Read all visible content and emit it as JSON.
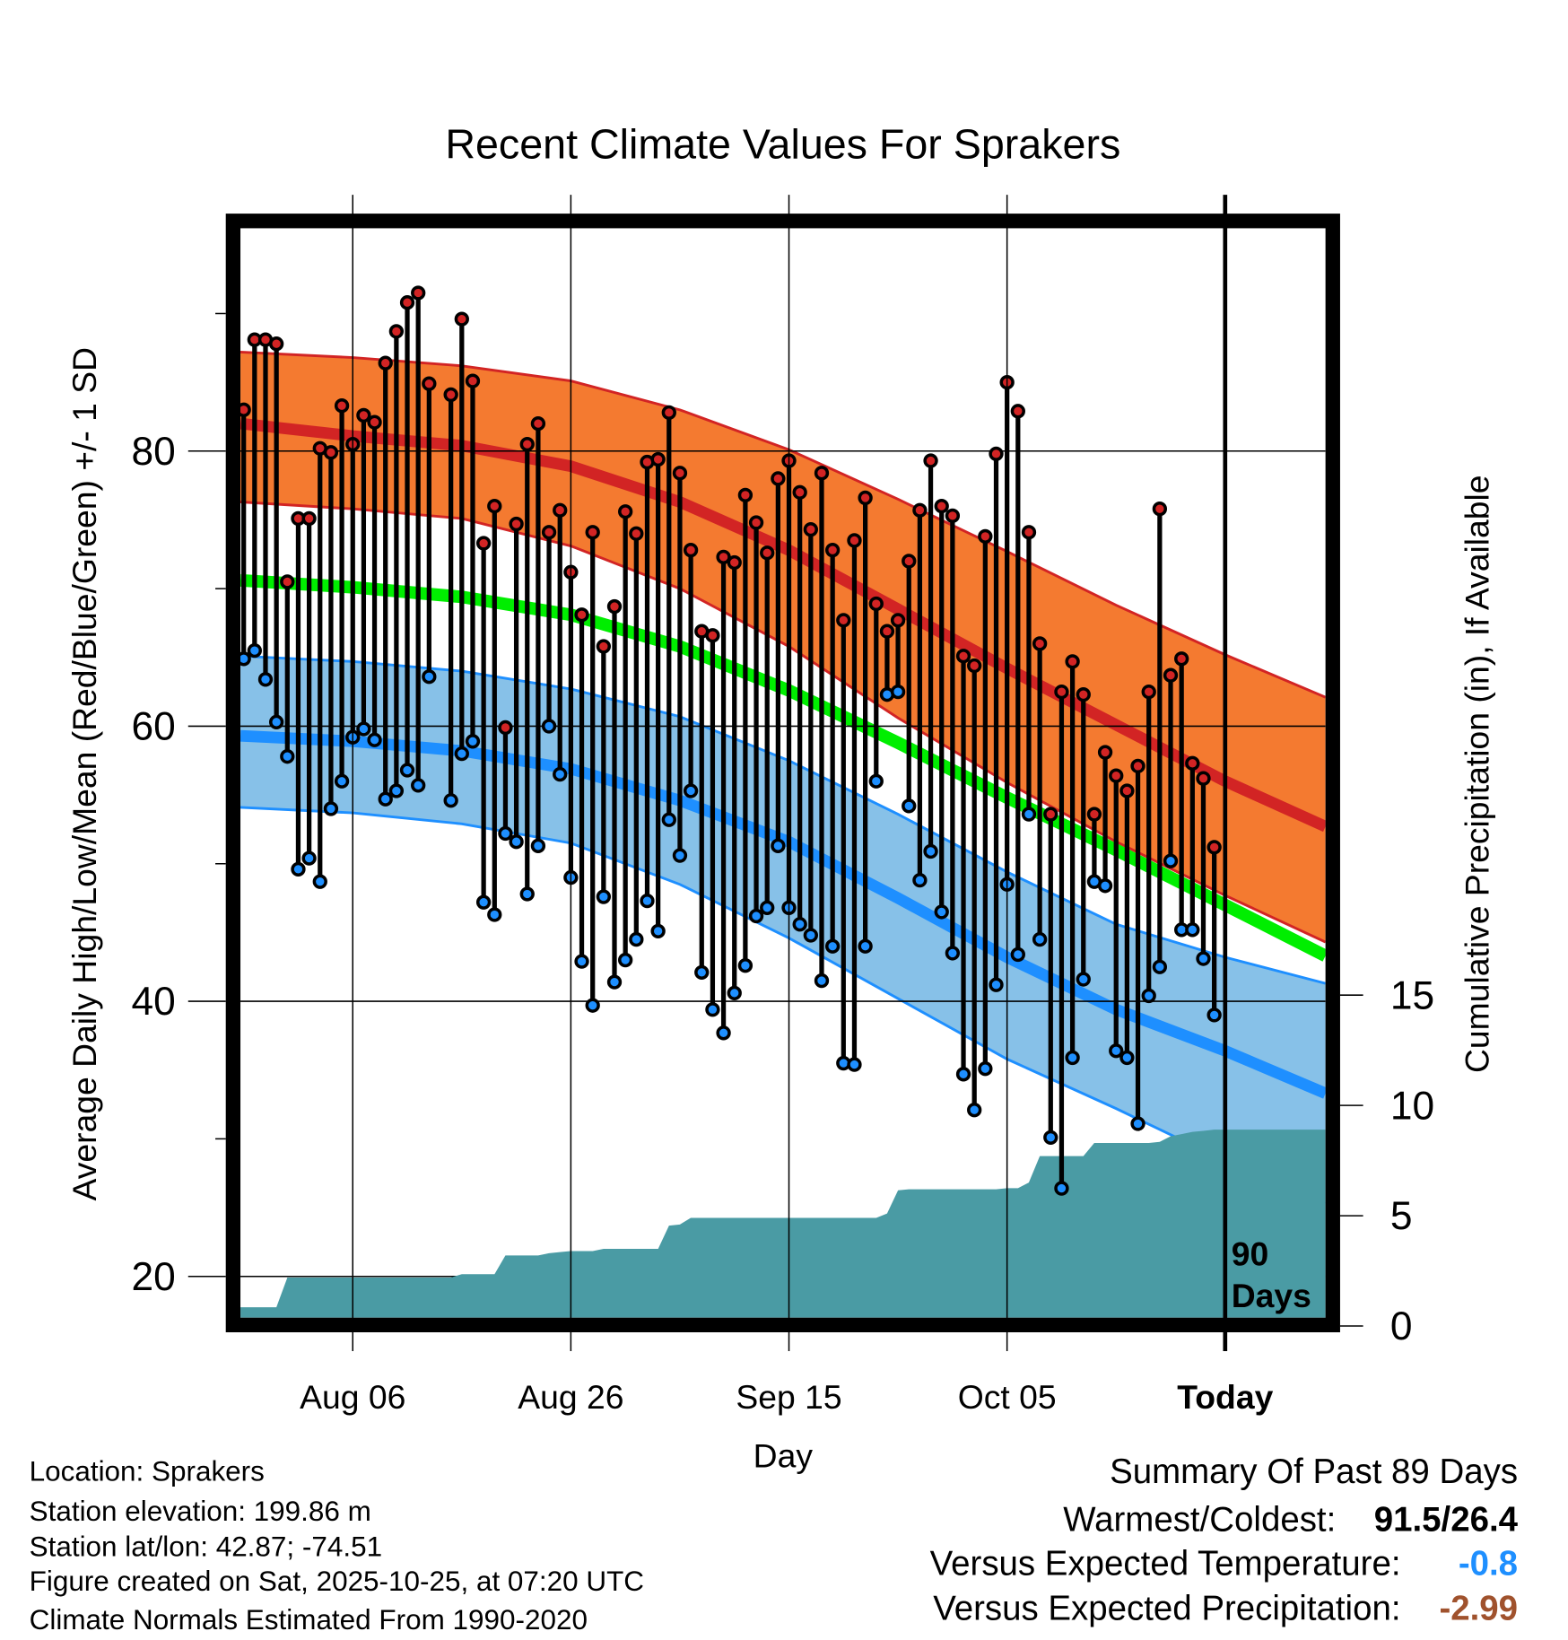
{
  "chart_data": {
    "type": "line",
    "title": "Recent Climate Values For Sprakers",
    "xlabel": "Day",
    "ylabel": "Average Daily High/Low/Mean (Red/Blue/Green) +/- 1 SD",
    "y2label": "Cumulative Precipitation (in), If Available",
    "x_units": "days relative to today",
    "xlim": [
      -90.3,
      9.2
    ],
    "ylim": [
      17,
      96.2
    ],
    "y2lim": [
      0,
      49.4
    ],
    "grid": true,
    "x_ticks": [
      {
        "value": -80,
        "label": "Aug 06"
      },
      {
        "value": -60,
        "label": "Aug 26"
      },
      {
        "value": -40,
        "label": "Sep 15"
      },
      {
        "value": -20,
        "label": "Oct 05"
      },
      {
        "value": 0,
        "label": "Today"
      }
    ],
    "y_ticks": [
      {
        "value": 20,
        "label": "20"
      },
      {
        "value": 40,
        "label": "40"
      },
      {
        "value": 60,
        "label": "60"
      },
      {
        "value": 80,
        "label": "80"
      }
    ],
    "y_minor_ticks": [
      30,
      50,
      70,
      90
    ],
    "y2_ticks": [
      {
        "value": 0,
        "label": "0"
      },
      {
        "value": 5,
        "label": "5"
      },
      {
        "value": 10,
        "label": "10"
      },
      {
        "value": 15,
        "label": "15"
      }
    ],
    "today_annotation": [
      "90",
      "Days"
    ],
    "daily_start_offset": -90,
    "daily_high": [
      83.0,
      88.1,
      88.1,
      87.8,
      70.5,
      75.1,
      75.1,
      80.2,
      79.9,
      83.3,
      80.5,
      82.6,
      82.1,
      86.4,
      88.7,
      90.8,
      91.5,
      84.9,
      null,
      84.1,
      89.6,
      85.1,
      73.3,
      76.0,
      59.9,
      74.7,
      80.5,
      82.0,
      74.1,
      75.7,
      71.2,
      68.1,
      74.1,
      65.8,
      68.7,
      75.6,
      74.0,
      79.2,
      79.4,
      82.8,
      78.4,
      72.8,
      66.9,
      66.6,
      72.3,
      71.9,
      76.8,
      74.8,
      72.6,
      78.0,
      79.3,
      77.0,
      74.3,
      78.4,
      72.8,
      67.7,
      73.5,
      76.6,
      68.9,
      66.9,
      67.7,
      72.0,
      75.7,
      79.3,
      76.0,
      75.3,
      65.1,
      64.4,
      73.8,
      79.8,
      85.0,
      82.9,
      74.1,
      66.0,
      53.6,
      62.5,
      64.7,
      62.3,
      53.6,
      58.1,
      56.4,
      55.3,
      57.1,
      62.5,
      75.8,
      63.7,
      64.9,
      57.3,
      56.2,
      51.2
    ],
    "daily_low": [
      64.9,
      65.5,
      63.4,
      60.3,
      57.8,
      49.6,
      50.4,
      48.7,
      54.0,
      56.0,
      59.2,
      59.8,
      59.0,
      54.7,
      55.3,
      56.8,
      55.7,
      63.6,
      null,
      54.6,
      58.0,
      58.9,
      47.2,
      46.3,
      52.2,
      51.6,
      47.8,
      51.3,
      60.0,
      56.5,
      49.0,
      42.9,
      39.7,
      47.6,
      41.4,
      43.0,
      44.5,
      47.3,
      45.1,
      53.2,
      50.6,
      55.3,
      42.1,
      39.4,
      37.7,
      40.6,
      42.6,
      46.2,
      46.8,
      51.3,
      46.8,
      45.6,
      44.8,
      41.5,
      44.0,
      35.5,
      35.4,
      44.0,
      56.0,
      62.3,
      62.5,
      54.2,
      48.8,
      50.9,
      46.5,
      43.5,
      34.7,
      32.1,
      35.1,
      41.2,
      48.5,
      43.4,
      53.6,
      44.5,
      30.1,
      26.4,
      35.9,
      41.6,
      48.7,
      48.4,
      36.4,
      35.9,
      31.1,
      40.4,
      42.5,
      50.2,
      45.2,
      45.2,
      43.1,
      39.0
    ],
    "cumulative_precip": [
      0.85,
      0.85,
      0.85,
      0.85,
      2.2,
      2.2,
      2.2,
      2.2,
      2.2,
      2.2,
      2.2,
      2.2,
      2.2,
      2.2,
      2.2,
      2.2,
      2.2,
      2.2,
      2.2,
      2.2,
      2.35,
      2.35,
      2.35,
      2.35,
      3.2,
      3.2,
      3.2,
      3.2,
      3.3,
      3.35,
      3.4,
      3.4,
      3.4,
      3.5,
      3.5,
      3.5,
      3.5,
      3.5,
      3.5,
      4.55,
      4.6,
      4.9,
      4.9,
      4.9,
      4.9,
      4.9,
      4.9,
      4.9,
      4.9,
      4.9,
      4.9,
      4.9,
      4.9,
      4.9,
      4.9,
      4.9,
      4.9,
      4.9,
      4.9,
      5.1,
      6.15,
      6.2,
      6.2,
      6.2,
      6.2,
      6.2,
      6.2,
      6.2,
      6.2,
      6.2,
      6.25,
      6.25,
      6.5,
      7.7,
      7.7,
      7.7,
      7.7,
      7.7,
      8.3,
      8.3,
      8.3,
      8.3,
      8.3,
      8.3,
      8.35,
      8.6,
      8.7,
      8.8,
      8.85,
      8.9
    ],
    "normals_x": [
      -90.3,
      -80,
      -70,
      -60,
      -50,
      -40,
      -30,
      -20,
      -10,
      0,
      9.2
    ],
    "normal_high_mean": [
      82.0,
      81.1,
      80.4,
      78.9,
      76.3,
      72.8,
      68.5,
      64.2,
      60.1,
      56.0,
      52.7
    ],
    "normal_high_upper": [
      87.2,
      86.8,
      86.2,
      85.1,
      83.0,
      80.1,
      76.5,
      72.7,
      68.8,
      65.2,
      62.1
    ],
    "normal_high_lower": [
      76.3,
      75.8,
      75.1,
      73.1,
      70.0,
      65.8,
      60.6,
      55.9,
      51.6,
      47.7,
      44.3
    ],
    "normal_mean": [
      70.6,
      70.1,
      69.4,
      68.1,
      65.8,
      62.6,
      58.8,
      54.8,
      51.0,
      47.0,
      43.3
    ],
    "normal_low_upper": [
      65.1,
      64.7,
      64.0,
      62.7,
      60.7,
      57.5,
      53.6,
      49.4,
      45.6,
      43.2,
      41.3
    ],
    "normal_low_mean": [
      59.3,
      58.9,
      58.2,
      56.9,
      54.6,
      51.6,
      47.5,
      43.2,
      39.4,
      36.4,
      33.3
    ],
    "normal_low_lower": [
      54.1,
      53.7,
      52.9,
      51.5,
      48.5,
      44.6,
      40.2,
      35.8,
      32.2,
      28.4,
      25.3
    ],
    "colors": {
      "high_band": "#f47a30",
      "high_line": "#d22424",
      "mean_line": "#00ee00",
      "low_band": "#87c1e8",
      "low_line": "#1e8fff",
      "precip": "#4a9ba4",
      "high_dot": "#d22424",
      "low_dot": "#1e8fff"
    }
  },
  "footer_left": {
    "location": "Location: Sprakers",
    "elevation": "Station elevation: 199.86 m",
    "latlon": "Station lat/lon: 42.87; -74.51",
    "created": "Figure created on Sat, 2025-10-25, at 07:20 UTC",
    "normals": "Climate Normals Estimated From 1990-2020"
  },
  "summary": {
    "title": "Summary Of Past 89 Days",
    "warmest_label": "Warmest/Coldest:",
    "warmest_value": "91.5/26.4",
    "temp_label": "Versus Expected Temperature:",
    "temp_value": "-0.8",
    "temp_color": "#1e8fff",
    "precip_label": "Versus Expected Precipitation:",
    "precip_value": "-2.99",
    "precip_color": "#a0522d"
  }
}
